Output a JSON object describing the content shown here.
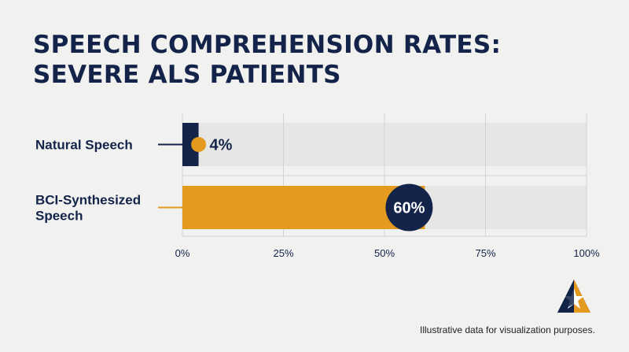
{
  "title_lines": [
    "SPEECH COMPREHENSION RATES:",
    "SEVERE ALS PATIENTS"
  ],
  "footnote": "Illustrative data for visualization purposes.",
  "colors": {
    "navy": "#13234a",
    "gold": "#e39a1f",
    "track": "#e6e6e4",
    "grid": "#d2d2d0",
    "background": "#f1f1ef"
  },
  "logo_icon": "triangle-star-logo-icon",
  "chart_data": {
    "type": "bar",
    "orientation": "horizontal",
    "categories": [
      "Natural Speech",
      "BCI-Synthesized Speech"
    ],
    "category_label_lines": [
      [
        "Natural Speech"
      ],
      [
        "BCI-Synthesized",
        "Speech"
      ]
    ],
    "values": [
      4,
      60
    ],
    "value_labels": [
      "4%",
      "60%"
    ],
    "bar_colors": [
      "#13234a",
      "#e39a1f"
    ],
    "xlim": [
      0,
      100
    ],
    "xticks": [
      0,
      25,
      50,
      75,
      100
    ],
    "xtick_labels": [
      "0%",
      "25%",
      "50%",
      "75%",
      "100%"
    ],
    "grid": true,
    "legend": "none"
  }
}
